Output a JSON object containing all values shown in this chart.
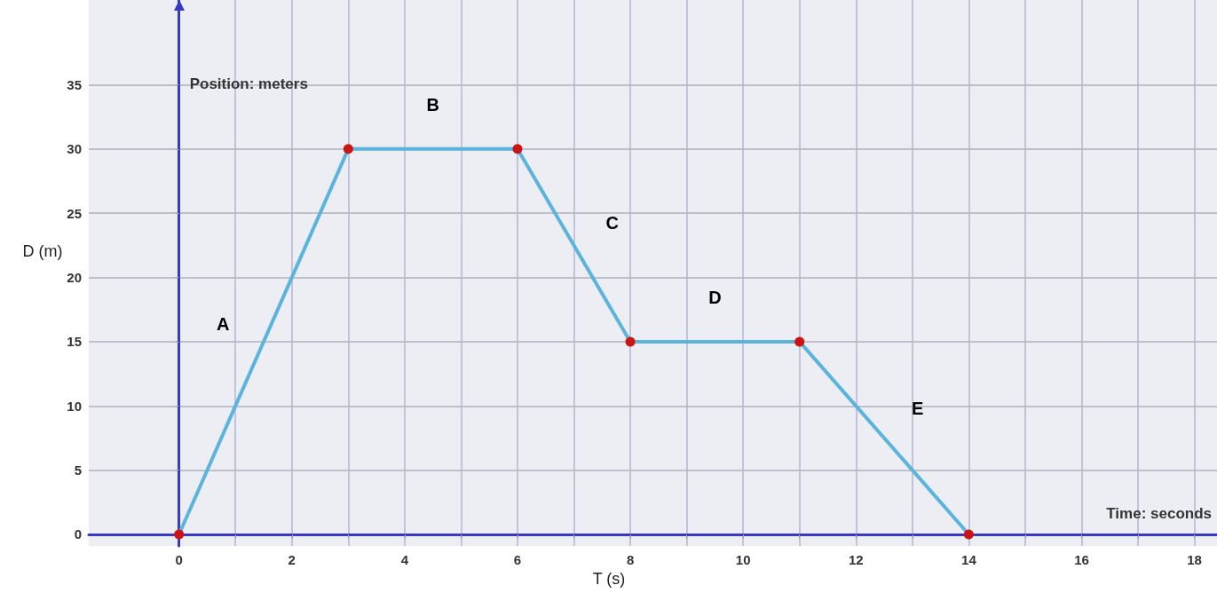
{
  "chart_data": {
    "type": "line",
    "xlabel": "Time: seconds",
    "ylabel": "Position: meters",
    "x": [
      0,
      3,
      6,
      8,
      11,
      14
    ],
    "series": [
      {
        "color": "#5ab4dc",
        "colors": [
          "#cc1414",
          "#cc1414",
          "#cc1414",
          "#cc1414",
          "#cc1414",
          "#cc1414"
        ],
        "values": [
          0,
          30,
          30,
          15,
          15,
          0
        ]
      }
    ],
    "xlim": [
      -1.6,
      18.4
    ],
    "ylim": [
      -0.9,
      41.6
    ],
    "xticks": [
      0,
      {
        "value": 1,
        "label": null
      },
      2,
      {
        "value": 3,
        "label": null
      },
      4,
      {
        "value": 5,
        "label": null
      },
      6,
      {
        "value": 7,
        "label": null
      },
      8,
      {
        "value": 9,
        "label": null
      },
      10,
      {
        "value": 11,
        "label": null
      },
      12,
      {
        "value": 13,
        "label": null
      },
      14,
      {
        "value": 15,
        "label": null
      },
      16,
      {
        "value": 17,
        "label": null
      },
      18
    ],
    "yticks": [
      0,
      5,
      10,
      15,
      20,
      25,
      30,
      35
    ],
    "grid": true,
    "marker": "circle",
    "line_style": "solid",
    "annotations": [
      "D (m)",
      "T (s)",
      "A",
      "B",
      "C",
      "D",
      "E"
    ]
  }
}
